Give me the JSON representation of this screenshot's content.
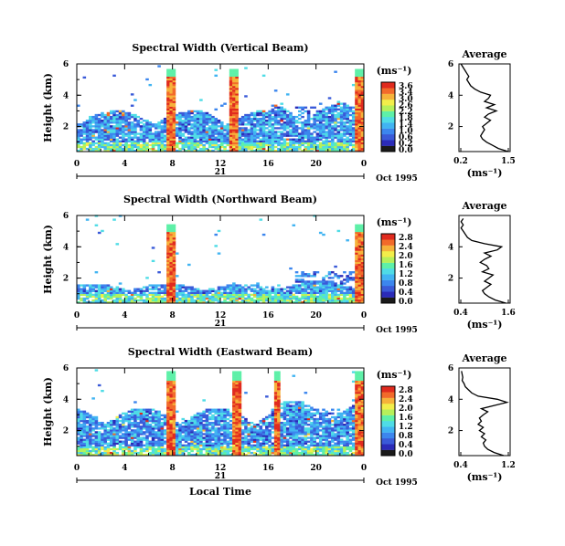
{
  "chart_data": [
    {
      "type": "heatmap",
      "title": "Spectral Width (Vertical Beam)",
      "ylabel": "Height (km)",
      "y_ticks": [
        "6",
        "4",
        "2"
      ],
      "ylim": [
        0.4,
        6
      ],
      "x_ticks": [
        "0",
        "4",
        "8",
        "12",
        "16",
        "20",
        "0"
      ],
      "xlim": [
        0,
        24
      ],
      "day_label": "21",
      "date_label": "Oct 1995",
      "colorbar": {
        "unit": "(ms⁻¹)",
        "ticks": [
          "3.6",
          "3.4",
          "3.0",
          "2.6",
          "2.2",
          "1.8",
          "1.4",
          "1.0",
          "0.6",
          "0.2",
          "0.0"
        ]
      },
      "profile": {
        "title": "Average",
        "xlabel": "(ms⁻¹)",
        "x_ticks": [
          "0.2",
          "1.5"
        ],
        "xlim": [
          0.2,
          1.5
        ],
        "y_ticks": [
          "6",
          "4",
          "2"
        ],
        "heights": [
          0.4,
          0.6,
          0.8,
          1.0,
          1.2,
          1.4,
          1.6,
          1.8,
          2.0,
          2.2,
          2.4,
          2.6,
          2.8,
          3.0,
          3.2,
          3.4,
          3.6,
          3.8,
          4.0,
          4.2,
          4.4,
          4.6,
          4.8,
          5.0,
          5.2,
          5.4,
          5.6,
          5.8,
          6.0
        ],
        "values": [
          1.45,
          1.2,
          1.05,
          0.9,
          0.8,
          0.75,
          0.8,
          0.85,
          0.8,
          0.9,
          1.0,
          0.85,
          0.95,
          1.15,
          0.9,
          1.1,
          0.85,
          0.95,
          1.0,
          0.75,
          0.6,
          0.5,
          0.45,
          0.4,
          0.45,
          0.4,
          0.35,
          0.3,
          0.25
        ]
      }
    },
    {
      "type": "heatmap",
      "title": "Spectral Width (Northward Beam)",
      "ylabel": "Height (km)",
      "y_ticks": [
        "6",
        "4",
        "2"
      ],
      "ylim": [
        0.4,
        6
      ],
      "x_ticks": [
        "0",
        "4",
        "8",
        "12",
        "16",
        "20",
        "0"
      ],
      "xlim": [
        0,
        24
      ],
      "day_label": "21",
      "date_label": "Oct 1995",
      "colorbar": {
        "unit": "(ms⁻¹)",
        "ticks": [
          "2.8",
          "2.4",
          "2.0",
          "1.6",
          "1.2",
          "0.8",
          "0.4",
          "0.0"
        ]
      },
      "profile": {
        "title": "Average",
        "xlabel": "(ms⁻¹)",
        "x_ticks": [
          "0.4",
          "1.6"
        ],
        "xlim": [
          0.4,
          1.6
        ],
        "y_ticks": [
          "4",
          "2"
        ],
        "heights": [
          0.4,
          0.6,
          0.8,
          1.0,
          1.2,
          1.4,
          1.6,
          1.8,
          2.0,
          2.2,
          2.4,
          2.6,
          2.8,
          3.0,
          3.2,
          3.4,
          3.6,
          3.8,
          4.0,
          4.2,
          4.4,
          4.6,
          4.8,
          5.0,
          5.2,
          5.4,
          5.6,
          5.8
        ],
        "values": [
          1.5,
          1.25,
          1.1,
          1.0,
          0.95,
          1.05,
          1.15,
          1.0,
          1.1,
          1.2,
          0.95,
          1.1,
          1.05,
          0.9,
          1.0,
          1.15,
          1.0,
          1.3,
          1.4,
          1.0,
          0.7,
          0.6,
          0.55,
          0.5,
          0.45,
          0.5,
          0.45,
          0.5
        ]
      }
    },
    {
      "type": "heatmap",
      "title": "Spectral Width (Eastward Beam)",
      "ylabel": "Height (km)",
      "y_ticks": [
        "6",
        "4",
        "2"
      ],
      "ylim": [
        0.4,
        6
      ],
      "x_ticks": [
        "0",
        "4",
        "8",
        "12",
        "16",
        "20",
        "0"
      ],
      "xlim": [
        0,
        24
      ],
      "day_label": "21",
      "date_label": "Oct 1995",
      "xlabel": "Local Time",
      "colorbar": {
        "unit": "(ms⁻¹)",
        "ticks": [
          "2.8",
          "2.4",
          "2.0",
          "1.6",
          "1.2",
          "0.8",
          "0.4",
          "0.0"
        ]
      },
      "profile": {
        "title": "Average",
        "xlabel": "(ms⁻¹)",
        "x_ticks": [
          "0.4",
          "1.2"
        ],
        "xlim": [
          0.4,
          1.2
        ],
        "y_ticks": [
          "6",
          "4",
          "2"
        ],
        "heights": [
          0.4,
          0.6,
          0.8,
          1.0,
          1.2,
          1.4,
          1.6,
          1.8,
          2.0,
          2.2,
          2.4,
          2.6,
          2.8,
          3.0,
          3.2,
          3.4,
          3.6,
          3.8,
          4.0,
          4.2,
          4.4,
          4.6,
          4.8,
          5.0,
          5.2,
          5.4,
          5.6,
          5.8
        ],
        "values": [
          1.1,
          0.95,
          0.85,
          0.8,
          0.78,
          0.82,
          0.75,
          0.8,
          0.72,
          0.78,
          0.7,
          0.75,
          0.72,
          0.78,
          0.85,
          0.75,
          0.95,
          1.15,
          1.0,
          0.7,
          0.6,
          0.55,
          0.5,
          0.48,
          0.45,
          0.46,
          0.45,
          0.44
        ]
      }
    }
  ],
  "colorscale": [
    "#1a1a1a",
    "#2b2bb8",
    "#3a5ad8",
    "#3c86ee",
    "#41b4f2",
    "#4fdce6",
    "#5ef0a8",
    "#b6f05a",
    "#f2ee4a",
    "#f6b23a",
    "#f26a2a",
    "#e02a1e"
  ]
}
